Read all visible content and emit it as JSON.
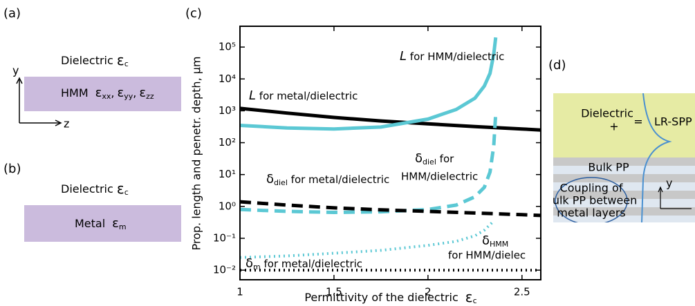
{
  "chart_data": {
    "type": "line",
    "label": "(c)",
    "x_label": {
      "text": "Permittivity of the dielectric",
      "symbol": "ε",
      "sub": "c"
    },
    "y_label": "Prop. length and penetr. depth, μm",
    "xlim": [
      1,
      2.6
    ],
    "xticks": [
      1,
      1.5,
      2,
      2.5
    ],
    "ylim": [
      0.005,
      450000
    ],
    "log_y": true,
    "yticks": [
      {
        "value": 0.01,
        "label": "10⁻²"
      },
      {
        "value": 0.1,
        "label": "10⁻¹"
      },
      {
        "value": 1,
        "label": "10⁰"
      },
      {
        "value": 10,
        "label": "10¹"
      },
      {
        "value": 100,
        "label": "10²"
      },
      {
        "value": 1000,
        "label": "10³"
      },
      {
        "value": 10000,
        "label": "10⁴"
      },
      {
        "value": 100000,
        "label": "10⁵"
      }
    ],
    "series": [
      {
        "color": "#000000",
        "dash": "solid",
        "x": [
          1,
          1.25,
          1.5,
          1.75,
          2,
          2.25,
          2.5,
          2.6
        ],
        "values": [
          1200,
          850,
          620,
          480,
          390,
          320,
          270,
          250
        ]
      },
      {
        "color": "#5bc8d4",
        "dash": "solid",
        "x": [
          1,
          1.25,
          1.5,
          1.75,
          2,
          2.15,
          2.25,
          2.3,
          2.33,
          2.35,
          2.36
        ],
        "values": [
          350,
          290,
          270,
          310,
          550,
          1100,
          2500,
          6000,
          15000,
          60000,
          200000
        ]
      },
      {
        "color": "#5bc8d4",
        "dash": "dashed",
        "x": [
          1,
          1.25,
          1.5,
          1.75,
          2,
          2.15,
          2.25,
          2.3,
          2.33,
          2.35,
          2.36
        ],
        "values": [
          0.8,
          0.7,
          0.65,
          0.68,
          0.8,
          1.1,
          2,
          4,
          12,
          80,
          800
        ]
      },
      {
        "color": "#000000",
        "dash": "dashed",
        "x": [
          1,
          1.25,
          1.5,
          1.75,
          2,
          2.25,
          2.5,
          2.6
        ],
        "values": [
          1.4,
          1.1,
          0.9,
          0.78,
          0.7,
          0.62,
          0.55,
          0.52
        ]
      },
      {
        "color": "#5bc8d4",
        "dash": "dotted",
        "x": [
          1,
          1.25,
          1.5,
          1.75,
          2,
          2.15,
          2.25,
          2.3,
          2.35
        ],
        "values": [
          0.025,
          0.028,
          0.034,
          0.042,
          0.06,
          0.08,
          0.12,
          0.18,
          0.35
        ]
      },
      {
        "color": "#000000",
        "dash": "dotted",
        "x": [
          1,
          1.5,
          2,
          2.6
        ],
        "values": [
          0.01,
          0.01,
          0.01,
          0.01
        ]
      }
    ],
    "annotations": [
      {
        "symbol": "L",
        "text": " for HMM/dielectric"
      },
      {
        "symbol": "L",
        "text": " for metal/dielectric"
      },
      {
        "symbol": "δ",
        "sub": "diel",
        "text": "  for",
        "line2": "HMM/dielectric"
      },
      {
        "symbol": "δ",
        "sub": "diel",
        "text": "  for metal/dielectric"
      },
      {
        "symbol": "δ",
        "sub": "HMM",
        "text": "",
        "line2": "for HMM/dielec"
      },
      {
        "symbol": "δ",
        "sub": "m",
        "text": "  for metal/dielectric"
      }
    ]
  },
  "panel_a": {
    "label": "(a)",
    "top": "Dielectric",
    "top_symbol": "ε",
    "top_sub": "c",
    "layer": "HMM",
    "terms": [
      {
        "symbol": "ε",
        "sub": "xx",
        "after": ","
      },
      {
        "symbol": "ε",
        "sub": "yy",
        "after": ","
      },
      {
        "symbol": "ε",
        "sub": "zz"
      }
    ],
    "axis_y": "y",
    "axis_z": "z"
  },
  "panel_b": {
    "label": "(b)",
    "top": "Dielectric",
    "top_symbol": "ε",
    "top_sub": "c",
    "layer": "Metal",
    "symbol": "ε",
    "sub": "m"
  },
  "panel_d": {
    "label": "(d)",
    "dielectric": "Dielectric",
    "plus": "+",
    "equals": "=",
    "result": "LR-SPP",
    "bulk": "Bulk PP",
    "coupling": [
      "Coupling of",
      "bulk PP between",
      "metal layers"
    ],
    "axis_y": "y"
  }
}
